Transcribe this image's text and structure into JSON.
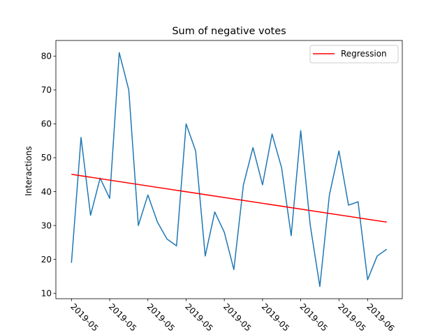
{
  "chart_data": {
    "type": "line",
    "title": "Sum of negative votes",
    "xlabel": "",
    "ylabel": "Interactions",
    "x_tick_labels": [
      "2019-05",
      "2019-05",
      "2019-05",
      "2019-05",
      "2019-05",
      "2019-05",
      "2019-05",
      "2019-05",
      "2019-06"
    ],
    "x_tick_indices": [
      0,
      4,
      8,
      12,
      16,
      20,
      24,
      28,
      31
    ],
    "ylim": [
      8.4,
      84.6
    ],
    "yticks": [
      10,
      20,
      30,
      40,
      50,
      60,
      70,
      80
    ],
    "grid": false,
    "legend_position": "top-right",
    "series": [
      {
        "color": "#1f77b4",
        "values": [
          19,
          56,
          33,
          44,
          38,
          81,
          70,
          30,
          39,
          31,
          26,
          24,
          60,
          52,
          21,
          34,
          28,
          17,
          42,
          53,
          42,
          57,
          47,
          27,
          58,
          30,
          12,
          39,
          52,
          36,
          37,
          14,
          21,
          23
        ]
      },
      {
        "name": "Regression",
        "color": "#ff0000",
        "values": [
          45.1,
          31.0
        ]
      }
    ]
  }
}
